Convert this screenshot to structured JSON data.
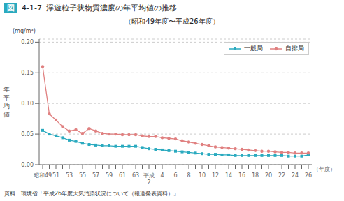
{
  "chart_data": {
    "type": "line",
    "title_badge": "図",
    "title_number": "4-1-7",
    "title": "浮遊粒子状物質濃度の年平均値の推移",
    "subtitle": "（昭和49年度〜平成26年度）",
    "y_unit": "(mg/m³)",
    "y_label": "年\n平\n均\n値",
    "x_label": "（年度）",
    "source": "資料：環境省「平成26年度大気汚染状況について（報道発表資料）」",
    "categories": [
      "昭和49",
      null,
      "51",
      null,
      "53",
      null,
      "55",
      null,
      "57",
      null,
      "59",
      null,
      "61",
      null,
      "63",
      null,
      "平成\n2",
      null,
      "4",
      null,
      "6",
      null,
      "8",
      null,
      "10",
      null,
      "12",
      null,
      "14",
      null,
      "16",
      null,
      "18",
      null,
      "20",
      null,
      "22",
      null,
      "24",
      null,
      "26"
    ],
    "series": [
      {
        "name": "一般局",
        "color": "#2aaabf",
        "marker": "square",
        "values": [
          0.056,
          0.05,
          0.047,
          0.044,
          0.04,
          0.038,
          0.035,
          0.033,
          0.032,
          0.031,
          0.031,
          0.03,
          0.03,
          0.03,
          0.03,
          0.028,
          0.026,
          0.025,
          0.024,
          0.023,
          0.022,
          0.021,
          0.02,
          0.019,
          0.018,
          0.017,
          0.017,
          0.016,
          0.016,
          0.015,
          0.015,
          0.015,
          0.015,
          0.015,
          0.015,
          0.015,
          0.015,
          0.014,
          0.014,
          0.014,
          0.016
        ]
      },
      {
        "name": "自排局",
        "color": "#e08080",
        "marker": "circle",
        "values": [
          0.16,
          0.083,
          0.073,
          0.062,
          0.055,
          0.057,
          0.051,
          0.059,
          0.055,
          0.051,
          0.05,
          0.05,
          0.049,
          0.049,
          0.049,
          0.047,
          0.046,
          0.046,
          0.044,
          0.043,
          0.042,
          0.039,
          0.037,
          0.035,
          0.033,
          0.031,
          0.029,
          0.028,
          0.027,
          0.026,
          0.025,
          0.024,
          0.023,
          0.022,
          0.022,
          0.021,
          0.02,
          0.02,
          0.019,
          0.019,
          0.019
        ]
      }
    ],
    "ylim": [
      0.0,
      0.205
    ],
    "yticks": [
      {
        "value": 0,
        "label": "0.00"
      },
      0.05,
      {
        "value": 0.1,
        "label": "0.10"
      },
      0.15,
      {
        "value": 0.2,
        "label": "0.20"
      }
    ],
    "grid": true,
    "legend": "upper right"
  }
}
